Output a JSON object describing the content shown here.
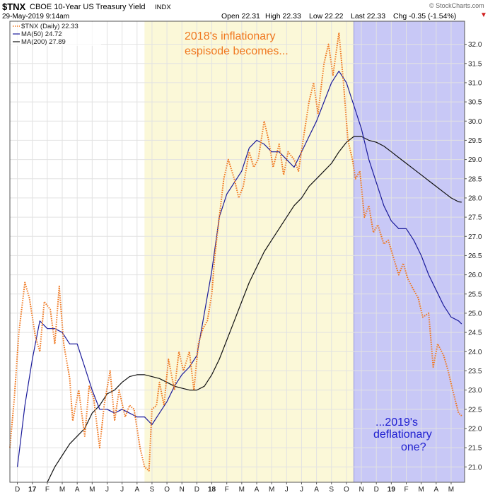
{
  "header": {
    "symbol": "$TNX",
    "name": "CBOE 10-Year US Treasury Yield",
    "exchange": "INDX",
    "date": "29-May-2019 9:14am",
    "open": "Open 22.31",
    "high": "High 22.33",
    "low": "Low 22.22",
    "last": "Last 22.33",
    "chg": "Chg -0.35 (-1.54%)",
    "chg_arrow": "▼",
    "watermark": "© StockCharts.com"
  },
  "legend": [
    {
      "label": "$TNX (Daily) 22.33",
      "color": "#f07820",
      "style": "dotted"
    },
    {
      "label": "MA(50) 24.72",
      "color": "#1a1a9a",
      "style": "solid"
    },
    {
      "label": "MA(200) 27.89",
      "color": "#111111",
      "style": "solid"
    }
  ],
  "annotations": {
    "top_line1": "2018's inflationary",
    "top_line2": "espisode becomes...",
    "bottom_line1": "...2019's",
    "bottom_line2": "deflationary",
    "bottom_line3": "one?"
  },
  "colors": {
    "price": "#f07820",
    "ma50": "#1a1a9a",
    "ma200": "#111111",
    "yellow_band": "#fbf8d8",
    "blue_band": "#c8c8f6",
    "blue_band_edge": "#9090e0",
    "grid": "#e2e2e2",
    "annotation_orange": "#f07820",
    "annotation_blue": "#2020d0"
  },
  "chart_data": {
    "type": "line",
    "title": "$TNX CBOE 10-Year US Treasury Yield INDX",
    "xlabel": "",
    "ylabel": "",
    "ylim": [
      20.6,
      32.6
    ],
    "xlim": [
      0,
      30.4
    ],
    "x_tick_labels": [
      "D",
      "17",
      "F",
      "M",
      "A",
      "M",
      "J",
      "J",
      "A",
      "S",
      "O",
      "N",
      "D",
      "18",
      "F",
      "M",
      "A",
      "M",
      "J",
      "J",
      "A",
      "S",
      "O",
      "N",
      "D",
      "19",
      "F",
      "M",
      "A",
      "M"
    ],
    "y_ticks": [
      21.0,
      21.5,
      22.0,
      22.5,
      23.0,
      23.5,
      24.0,
      24.5,
      25.0,
      25.5,
      26.0,
      26.5,
      27.0,
      27.5,
      28.0,
      28.5,
      29.0,
      29.5,
      30.0,
      30.5,
      31.0,
      31.5,
      32.0
    ],
    "shaded_regions": [
      {
        "name": "2018 inflationary episode",
        "x_start": 9.0,
        "x_end": 23.0
      },
      {
        "name": "2019 deflationary episode",
        "x_start": 23.0,
        "x_end": 30.4
      }
    ],
    "series": [
      {
        "name": "$TNX (Daily)",
        "x": [
          0,
          0.3,
          0.6,
          1,
          1.3,
          1.7,
          2,
          2.3,
          2.7,
          3,
          3.3,
          3.6,
          4,
          4.2,
          4.6,
          5,
          5.3,
          5.6,
          6,
          6.3,
          6.7,
          7,
          7.3,
          7.7,
          8,
          8.3,
          8.7,
          9,
          9.3,
          9.5,
          9.8,
          10,
          10.3,
          10.6,
          11,
          11.3,
          11.6,
          12,
          12.3,
          12.6,
          12.9,
          13.2,
          13.5,
          13.7,
          14,
          14.3,
          14.6,
          15,
          15.3,
          15.6,
          16,
          16.3,
          16.6,
          17,
          17.3,
          17.6,
          18,
          18.3,
          18.6,
          19,
          19.3,
          19.6,
          20,
          20.3,
          20.6,
          21,
          21.3,
          21.6,
          22,
          22.3,
          22.6,
          22.9,
          23.1,
          23.4,
          23.7,
          24,
          24.3,
          24.6,
          25,
          25.3,
          25.6,
          26,
          26.3,
          26.6,
          27,
          27.3,
          27.6,
          28,
          28.3,
          28.6,
          29,
          29.3,
          29.6,
          30,
          30.2
        ],
        "values": [
          21.5,
          22.8,
          24.5,
          25.8,
          25.4,
          24.4,
          24.0,
          25.3,
          25.1,
          24.2,
          25.7,
          24.2,
          23.3,
          22.2,
          23.0,
          21.8,
          23.1,
          22.8,
          21.5,
          22.6,
          23.5,
          22.2,
          23.0,
          22.3,
          22.6,
          22.5,
          21.5,
          21.0,
          20.9,
          22.5,
          22.6,
          23.2,
          22.6,
          23.8,
          23.0,
          24.0,
          23.5,
          24.0,
          23.0,
          24.2,
          24.6,
          24.8,
          25.5,
          26.5,
          27.5,
          28.5,
          29.0,
          28.5,
          28.0,
          28.3,
          29.2,
          28.8,
          29.0,
          30.0,
          29.5,
          28.8,
          29.4,
          28.6,
          29.2,
          29.0,
          28.7,
          29.5,
          30.5,
          31.0,
          30.2,
          31.5,
          32.0,
          31.2,
          32.3,
          31.0,
          29.5,
          29.0,
          28.5,
          28.7,
          27.5,
          27.8,
          27.1,
          27.3,
          26.8,
          26.9,
          26.5,
          26.0,
          26.3,
          25.9,
          25.6,
          25.4,
          24.9,
          25.0,
          23.6,
          24.2,
          23.9,
          23.5,
          23.0,
          22.4,
          22.33
        ],
        "style": "dotted"
      },
      {
        "name": "MA(50)",
        "x": [
          0.5,
          1,
          1.5,
          2,
          2.5,
          3,
          3.5,
          4,
          4.5,
          5,
          5.5,
          6,
          6.5,
          7,
          7.5,
          8,
          8.5,
          9,
          9.5,
          10,
          10.5,
          11,
          11.5,
          12,
          12.5,
          13,
          13.5,
          14,
          14.5,
          15,
          15.5,
          16,
          16.5,
          17,
          17.5,
          18,
          18.5,
          19,
          19.5,
          20,
          20.5,
          21,
          21.5,
          22,
          22.5,
          23,
          23.5,
          24,
          24.5,
          25,
          25.5,
          26,
          26.5,
          27,
          27.5,
          28,
          28.5,
          29,
          29.5,
          30,
          30.2
        ],
        "values": [
          21.0,
          22.6,
          23.8,
          24.8,
          24.6,
          24.6,
          24.5,
          24.2,
          24.2,
          23.6,
          23.0,
          22.5,
          22.5,
          22.4,
          22.5,
          22.4,
          22.3,
          22.3,
          22.1,
          22.4,
          22.7,
          23.1,
          23.4,
          23.6,
          23.9,
          25.0,
          26.1,
          27.5,
          28.1,
          28.4,
          28.7,
          29.3,
          29.5,
          29.4,
          29.2,
          29.2,
          29.0,
          28.8,
          29.2,
          29.6,
          30.0,
          30.5,
          31.0,
          31.3,
          31.0,
          30.4,
          29.8,
          29.0,
          28.4,
          27.8,
          27.4,
          27.2,
          27.2,
          26.9,
          26.5,
          26.0,
          25.6,
          25.2,
          24.9,
          24.8,
          24.72
        ],
        "style": "solid"
      },
      {
        "name": "MA(200)",
        "x": [
          2.5,
          3,
          3.5,
          4,
          4.5,
          5,
          5.5,
          6,
          6.5,
          7,
          7.5,
          8,
          8.5,
          9,
          9.5,
          10,
          10.5,
          11,
          11.5,
          12,
          12.5,
          13,
          13.5,
          14,
          14.5,
          15,
          15.5,
          16,
          16.5,
          17,
          17.5,
          18,
          18.5,
          19,
          19.5,
          20,
          20.5,
          21,
          21.5,
          22,
          22.5,
          23,
          23.5,
          24,
          24.5,
          25,
          25.5,
          26,
          26.5,
          27,
          27.5,
          28,
          28.5,
          29,
          29.5,
          30,
          30.2
        ],
        "values": [
          20.6,
          21.0,
          21.3,
          21.6,
          21.8,
          22.0,
          22.4,
          22.6,
          22.9,
          23.0,
          23.2,
          23.35,
          23.4,
          23.4,
          23.35,
          23.3,
          23.2,
          23.1,
          23.05,
          23.0,
          23.0,
          23.1,
          23.4,
          23.8,
          24.3,
          24.8,
          25.3,
          25.8,
          26.2,
          26.6,
          26.9,
          27.2,
          27.5,
          27.8,
          28.0,
          28.3,
          28.5,
          28.7,
          28.9,
          29.2,
          29.45,
          29.6,
          29.6,
          29.5,
          29.45,
          29.35,
          29.2,
          29.05,
          28.9,
          28.75,
          28.6,
          28.45,
          28.3,
          28.15,
          28.0,
          27.9,
          27.89
        ],
        "style": "solid"
      }
    ]
  }
}
